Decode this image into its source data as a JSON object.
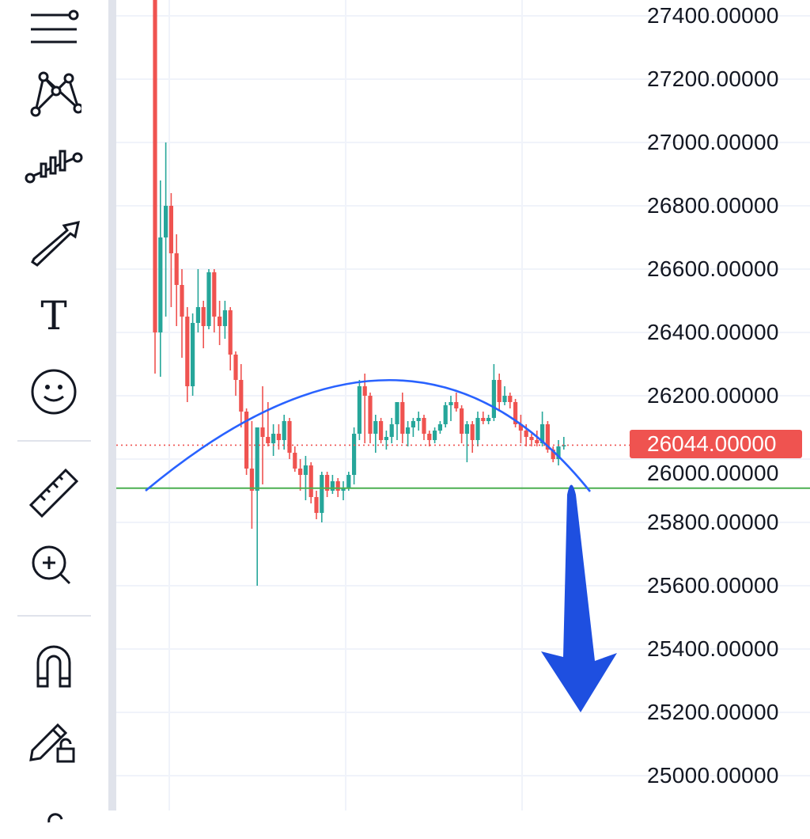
{
  "toolbar": {
    "tools": [
      {
        "name": "menu-lines-icon"
      },
      {
        "name": "pattern-icon"
      },
      {
        "name": "indicator-candles-icon"
      },
      {
        "name": "arrow-icon"
      },
      {
        "name": "text-icon",
        "glyph": "T"
      },
      {
        "name": "emoji-icon"
      },
      {
        "name": "ruler-icon"
      },
      {
        "name": "zoom-in-icon"
      },
      {
        "name": "magnet-icon"
      },
      {
        "name": "pencil-lock-icon"
      }
    ]
  },
  "colors": {
    "up": "#26a69a",
    "down": "#ef5350",
    "trendline": "#2962ff",
    "horizontal_line": "#4caf50",
    "arrow": "#1e4fe0",
    "price_tag": "#ef5350"
  },
  "chart_data": {
    "type": "candlestick",
    "y_ticks": [
      "27400.00000",
      "27200.00000",
      "27000.00000",
      "26800.00000",
      "26600.00000",
      "26400.00000",
      "26200.00000",
      "26000.00000",
      "25800.00000",
      "25600.00000",
      "25400.00000",
      "25200.00000",
      "25000.00000"
    ],
    "ylim": [
      24900,
      27450
    ],
    "current_price": "26044.00000",
    "current_price_value": 26044,
    "horizontal_line": 25908,
    "grid": true,
    "candles": [
      [
        28000,
        28100,
        26270,
        26400
      ],
      [
        26400,
        26880,
        26260,
        26700
      ],
      [
        26700,
        27000,
        26450,
        26800
      ],
      [
        26800,
        26840,
        26480,
        26650
      ],
      [
        26650,
        26710,
        26420,
        26550
      ],
      [
        26550,
        26600,
        26320,
        26450
      ],
      [
        26450,
        26480,
        26180,
        26230
      ],
      [
        26230,
        26460,
        26200,
        26430
      ],
      [
        26430,
        26600,
        26400,
        26480
      ],
      [
        26480,
        26500,
        26350,
        26420
      ],
      [
        26420,
        26600,
        26410,
        26590
      ],
      [
        26590,
        26600,
        26400,
        26450
      ],
      [
        26450,
        26500,
        26360,
        26420
      ],
      [
        26420,
        26500,
        26380,
        26470
      ],
      [
        26470,
        26480,
        26280,
        26330
      ],
      [
        26330,
        26340,
        26200,
        26250
      ],
      [
        26250,
        26300,
        26100,
        26150
      ],
      [
        26150,
        26160,
        25950,
        25970
      ],
      [
        25970,
        26120,
        25780,
        25900
      ],
      [
        25900,
        26090,
        25600,
        26100
      ],
      [
        26100,
        26230,
        25920,
        26070
      ],
      [
        26070,
        26180,
        26040,
        26050
      ],
      [
        26050,
        26110,
        26010,
        26080
      ],
      [
        26080,
        26110,
        26030,
        26060
      ],
      [
        26060,
        26140,
        26030,
        26120
      ],
      [
        26120,
        26130,
        26000,
        26020
      ],
      [
        26020,
        26040,
        25960,
        25970
      ],
      [
        25970,
        26000,
        25900,
        25950
      ],
      [
        25950,
        26010,
        25870,
        25980
      ],
      [
        25980,
        25990,
        25860,
        25880
      ],
      [
        25880,
        25900,
        25810,
        25830
      ],
      [
        25830,
        25960,
        25800,
        25950
      ],
      [
        25950,
        25960,
        25880,
        25900
      ],
      [
        25900,
        25950,
        25890,
        25930
      ],
      [
        25930,
        25940,
        25880,
        25900
      ],
      [
        25900,
        25930,
        25870,
        25910
      ],
      [
        25910,
        25960,
        25900,
        25950
      ],
      [
        25950,
        26100,
        25920,
        26080
      ],
      [
        26080,
        26250,
        26060,
        26230
      ],
      [
        26230,
        26270,
        26050,
        26200
      ],
      [
        26200,
        26210,
        26050,
        26080
      ],
      [
        26080,
        26140,
        26020,
        26120
      ],
      [
        26120,
        26130,
        26050,
        26060
      ],
      [
        26060,
        26090,
        26030,
        26070
      ],
      [
        26070,
        26130,
        26050,
        26110
      ],
      [
        26110,
        26180,
        26060,
        26180
      ],
      [
        26180,
        26210,
        26050,
        26080
      ],
      [
        26080,
        26120,
        26040,
        26100
      ],
      [
        26100,
        26130,
        26070,
        26120
      ],
      [
        26120,
        26150,
        26090,
        26130
      ],
      [
        26130,
        26140,
        26060,
        26080
      ],
      [
        26080,
        26090,
        26040,
        26060
      ],
      [
        26060,
        26100,
        26050,
        26090
      ],
      [
        26090,
        26120,
        26080,
        26110
      ],
      [
        26110,
        26180,
        26100,
        26170
      ],
      [
        26170,
        26200,
        26120,
        26180
      ],
      [
        26180,
        26210,
        26150,
        26160
      ],
      [
        26160,
        26170,
        26050,
        26080
      ],
      [
        26080,
        26120,
        25990,
        26110
      ],
      [
        26110,
        26120,
        26020,
        26060
      ],
      [
        26060,
        26150,
        26040,
        26130
      ],
      [
        26130,
        26150,
        26110,
        26120
      ],
      [
        26120,
        26140,
        26110,
        26130
      ],
      [
        26130,
        26300,
        26120,
        26250
      ],
      [
        26250,
        26270,
        26150,
        26180
      ],
      [
        26180,
        26230,
        26170,
        26200
      ],
      [
        26200,
        26210,
        26160,
        26180
      ],
      [
        26180,
        26190,
        26100,
        26110
      ],
      [
        26110,
        26140,
        26050,
        26090
      ],
      [
        26090,
        26110,
        26040,
        26070
      ],
      [
        26070,
        26080,
        26040,
        26060
      ],
      [
        26060,
        26090,
        26040,
        26050
      ],
      [
        26050,
        26150,
        26040,
        26110
      ],
      [
        26110,
        26120,
        26020,
        26030
      ],
      [
        26030,
        26040,
        25990,
        26000
      ],
      [
        26000,
        26060,
        25980,
        26040
      ],
      [
        26040,
        26070,
        26030,
        26044
      ]
    ]
  }
}
